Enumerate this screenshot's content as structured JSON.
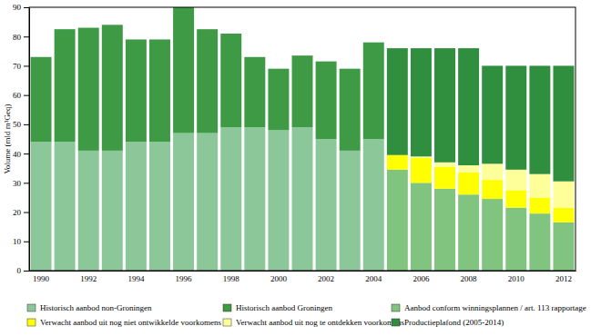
{
  "chart_data": {
    "type": "bar",
    "stacked": true,
    "grid": false,
    "legend": "bottom",
    "y_label": "Volume (mld m³Geq)",
    "categories": [
      "1990",
      null,
      "1992",
      null,
      "1994",
      null,
      "1996",
      null,
      "1998",
      null,
      "2000",
      null,
      "2002",
      null,
      "2004",
      null,
      "2006",
      null,
      "2008",
      null,
      "2010",
      null,
      "2012"
    ],
    "ylim": [
      0,
      90
    ],
    "yticks": [
      0,
      10,
      20,
      30,
      40,
      50,
      60,
      70,
      80,
      90
    ],
    "series": [
      {
        "name": "Historisch aanbod non-Groningen",
        "color": "#8cc79a",
        "values": [
          44,
          44,
          41,
          41,
          44,
          44,
          47,
          47,
          49,
          49,
          48,
          49,
          45,
          41,
          45,
          null,
          null,
          null,
          null,
          null,
          null,
          null,
          null
        ]
      },
      {
        "name": "Historisch aanbod Groningen",
        "color": "#3f9a45",
        "values": [
          29,
          38.5,
          42,
          43,
          35,
          35,
          43,
          35.5,
          32,
          24,
          21,
          24.5,
          26.5,
          28,
          33,
          null,
          null,
          null,
          null,
          null,
          null,
          null,
          null
        ]
      },
      {
        "name": "Aanbod conform winningsplannen / art. 113 rapportage",
        "color": "#80c480",
        "values": [
          null,
          null,
          null,
          null,
          null,
          null,
          null,
          null,
          null,
          null,
          null,
          null,
          null,
          null,
          null,
          34.5,
          30,
          28,
          26,
          24.5,
          21.5,
          19.5,
          16.5
        ]
      },
      {
        "name": "Verwacht aanbod uit nog niet ontwikkelde voorkomens",
        "color": "#ffff00",
        "values": [
          null,
          null,
          null,
          null,
          null,
          null,
          null,
          null,
          null,
          null,
          null,
          null,
          null,
          null,
          null,
          5,
          8.5,
          7.5,
          7.5,
          6.5,
          6,
          5.5,
          5
        ]
      },
      {
        "name": "Verwacht aanbod uit nog te ontdekken voorkomens",
        "color": "#ffff99",
        "values": [
          null,
          null,
          null,
          null,
          null,
          null,
          null,
          null,
          null,
          null,
          null,
          null,
          null,
          null,
          null,
          0,
          0.5,
          1.5,
          2.5,
          5.5,
          7,
          8,
          9
        ]
      },
      {
        "name": "Productieplafond (2005-2014)",
        "color": "#2f8f3f",
        "values": [
          null,
          null,
          null,
          null,
          null,
          null,
          null,
          null,
          null,
          null,
          null,
          null,
          null,
          null,
          null,
          36.5,
          37,
          39,
          40,
          33.5,
          35.5,
          37,
          39.5
        ]
      }
    ]
  }
}
